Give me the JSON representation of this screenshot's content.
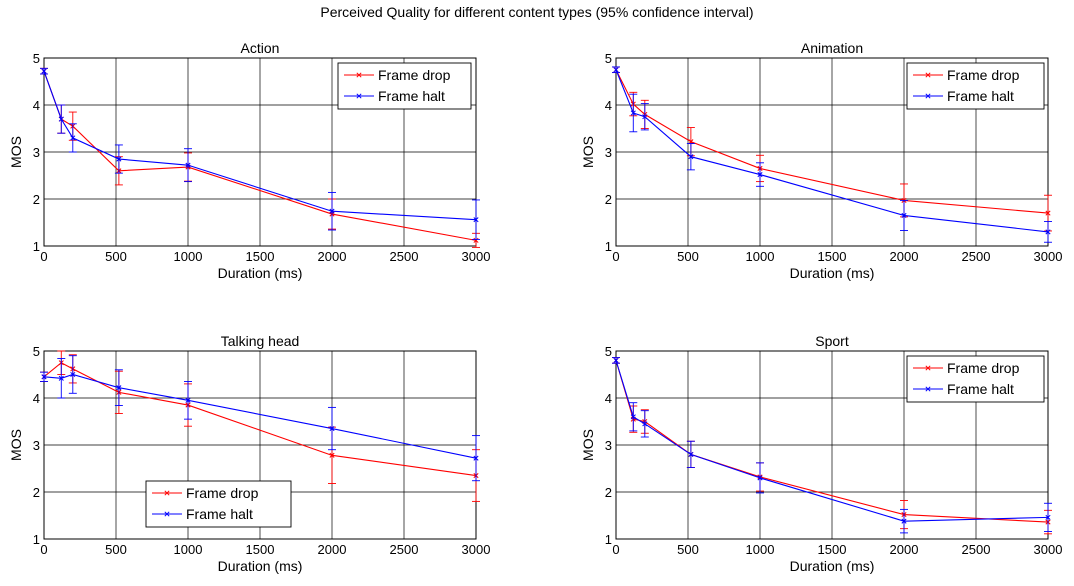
{
  "figure": {
    "suptitle": "Perceived Quality for different content types (95% confidence interval)"
  },
  "chart_data": [
    {
      "type": "line",
      "title": "Action",
      "xlabel": "Duration (ms)",
      "ylabel": "MOS",
      "xlim": [
        0,
        3000
      ],
      "ylim": [
        1,
        5
      ],
      "xticks": [
        "0",
        "500",
        "1000",
        "1500",
        "2000",
        "2500",
        "3000"
      ],
      "yticks": [
        "1",
        "2",
        "3",
        "4",
        "5"
      ],
      "grid": true,
      "legend_position": "top-right",
      "x": [
        0,
        120,
        200,
        520,
        1000,
        2000,
        3000
      ],
      "series": [
        {
          "name": "Frame drop",
          "color": "#ff0000",
          "values": [
            4.72,
            3.7,
            3.55,
            2.6,
            2.68,
            1.68,
            1.12
          ],
          "err": [
            0.06,
            0.3,
            0.3,
            0.3,
            0.3,
            0.32,
            0.15
          ]
        },
        {
          "name": "Frame halt",
          "color": "#0000ff",
          "values": [
            4.72,
            3.7,
            3.3,
            2.85,
            2.72,
            1.74,
            1.56
          ],
          "err": [
            0.06,
            0.3,
            0.3,
            0.3,
            0.35,
            0.4,
            0.42
          ]
        }
      ]
    },
    {
      "type": "line",
      "title": "Animation",
      "xlabel": "Duration (ms)",
      "ylabel": "MOS",
      "xlim": [
        0,
        3000
      ],
      "ylim": [
        1,
        5
      ],
      "xticks": [
        "0",
        "500",
        "1000",
        "1500",
        "2000",
        "2500",
        "3000"
      ],
      "yticks": [
        "1",
        "2",
        "3",
        "4",
        "5"
      ],
      "grid": true,
      "legend_position": "top-right",
      "x": [
        0,
        120,
        200,
        520,
        1000,
        2000,
        3000
      ],
      "series": [
        {
          "name": "Frame drop",
          "color": "#ff0000",
          "values": [
            4.75,
            4.02,
            3.8,
            3.22,
            2.65,
            1.97,
            1.7
          ],
          "err": [
            0.06,
            0.25,
            0.3,
            0.3,
            0.28,
            0.35,
            0.38
          ]
        },
        {
          "name": "Frame halt",
          "color": "#0000ff",
          "values": [
            4.75,
            3.83,
            3.75,
            2.9,
            2.52,
            1.65,
            1.3
          ],
          "err": [
            0.06,
            0.4,
            0.28,
            0.28,
            0.25,
            0.32,
            0.22
          ]
        }
      ]
    },
    {
      "type": "line",
      "title": "Talking head",
      "xlabel": "Duration (ms)",
      "ylabel": "MOS",
      "xlim": [
        0,
        3000
      ],
      "ylim": [
        1,
        5
      ],
      "xticks": [
        "0",
        "500",
        "1000",
        "1500",
        "2000",
        "2500",
        "3000"
      ],
      "yticks": [
        "1",
        "2",
        "3",
        "4",
        "5"
      ],
      "grid": true,
      "legend_position": "bottom-left",
      "x": [
        0,
        120,
        200,
        520,
        1000,
        2000,
        3000
      ],
      "series": [
        {
          "name": "Frame drop",
          "color": "#ff0000",
          "values": [
            4.45,
            4.75,
            4.62,
            4.12,
            3.85,
            2.78,
            2.35
          ],
          "err": [
            0.1,
            0.25,
            0.3,
            0.45,
            0.45,
            0.6,
            0.55
          ]
        },
        {
          "name": "Frame halt",
          "color": "#0000ff",
          "values": [
            4.45,
            4.42,
            4.5,
            4.22,
            3.95,
            3.35,
            2.72
          ],
          "err": [
            0.1,
            0.42,
            0.4,
            0.38,
            0.4,
            0.45,
            0.48
          ]
        }
      ]
    },
    {
      "type": "line",
      "title": "Sport",
      "xlabel": "Duration (ms)",
      "ylabel": "MOS",
      "xlim": [
        0,
        3000
      ],
      "ylim": [
        1,
        5
      ],
      "xticks": [
        "0",
        "500",
        "1000",
        "1500",
        "2000",
        "2500",
        "3000"
      ],
      "yticks": [
        "1",
        "2",
        "3",
        "4",
        "5"
      ],
      "grid": true,
      "legend_position": "top-right",
      "x": [
        0,
        120,
        200,
        520,
        1000,
        2000,
        3000
      ],
      "series": [
        {
          "name": "Frame drop",
          "color": "#ff0000",
          "values": [
            4.8,
            3.55,
            3.5,
            2.8,
            2.32,
            1.52,
            1.36
          ],
          "err": [
            0.06,
            0.28,
            0.25,
            0.28,
            0.3,
            0.3,
            0.25
          ]
        },
        {
          "name": "Frame halt",
          "color": "#0000ff",
          "values": [
            4.8,
            3.6,
            3.45,
            2.8,
            2.3,
            1.38,
            1.46
          ],
          "err": [
            0.06,
            0.3,
            0.28,
            0.28,
            0.32,
            0.25,
            0.3
          ]
        }
      ]
    }
  ]
}
